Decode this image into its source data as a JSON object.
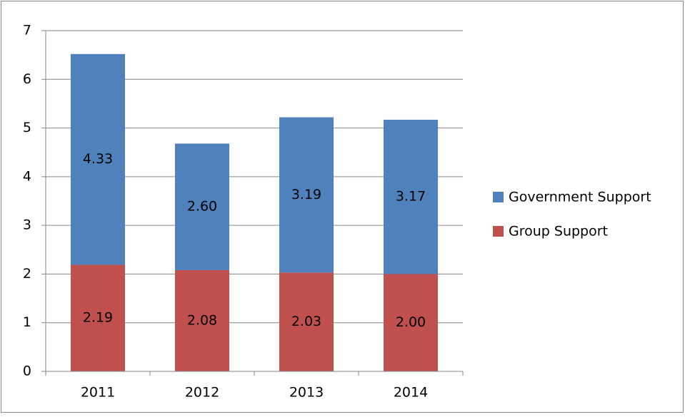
{
  "chart_data": {
    "type": "stacked-bar",
    "categories": [
      "2011",
      "2012",
      "2013",
      "2014"
    ],
    "series": [
      {
        "name": "Group Support",
        "color": "#c0504d",
        "values": [
          2.19,
          2.08,
          2.03,
          2.0
        ],
        "value_labels": [
          "2.19",
          "2.08",
          "2.03",
          "2.00"
        ]
      },
      {
        "name": "Government Support",
        "color": "#4f81bd",
        "values": [
          4.33,
          2.6,
          3.19,
          3.17
        ],
        "value_labels": [
          "4.33",
          "2.60",
          "3.19",
          "3.17"
        ]
      }
    ],
    "ylim": [
      0,
      7
    ],
    "yticks": [
      0,
      1,
      2,
      3,
      4,
      5,
      6,
      7
    ],
    "grid": true,
    "legend": "right"
  }
}
